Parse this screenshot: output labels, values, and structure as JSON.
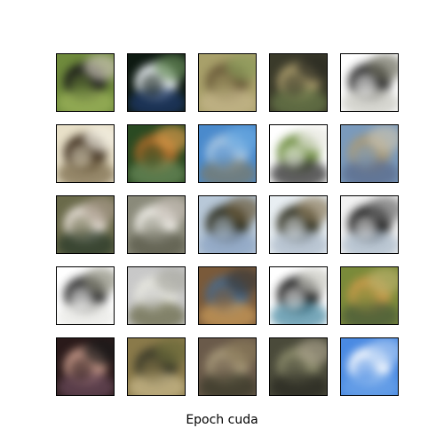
{
  "figure": {
    "caption": "Epoch cuda",
    "grid": {
      "rows": 5,
      "cols": 5
    },
    "samples": [
      {
        "name": "sample-1-1",
        "colors": [
          "#6f8a3c",
          "#1a1a1a",
          "#9bb25a",
          "#c9c2b5"
        ]
      },
      {
        "name": "sample-1-2",
        "colors": [
          "#0e1a12",
          "#e8eef2",
          "#1f3a6a",
          "#6a8f5a"
        ]
      },
      {
        "name": "sample-1-3",
        "colors": [
          "#a8a06a",
          "#6a5a3a",
          "#c4b58a",
          "#8a9a5a"
        ]
      },
      {
        "name": "sample-1-4",
        "colors": [
          "#3a3a2a",
          "#a89a6a",
          "#6a7a4a",
          "#2a2a22"
        ]
      },
      {
        "name": "sample-1-5",
        "colors": [
          "#ffffff",
          "#2a2a2a",
          "#c8c8c0",
          "#6a6a5a"
        ]
      },
      {
        "name": "sample-2-1",
        "colors": [
          "#e8e0c8",
          "#3a2a1a",
          "#7a6a4a",
          "#f2eee2"
        ]
      },
      {
        "name": "sample-2-2",
        "colors": [
          "#2a4a22",
          "#a86a2a",
          "#6a8a5a",
          "#d89a4a"
        ]
      },
      {
        "name": "sample-2-3",
        "colors": [
          "#4a8acc",
          "#a8c6e2",
          "#7a7a6a",
          "#6aaae2"
        ]
      },
      {
        "name": "sample-2-4",
        "colors": [
          "#ffffff",
          "#6a8a3a",
          "#2a2a2a",
          "#e8e8e0"
        ]
      },
      {
        "name": "sample-2-5",
        "colors": [
          "#7a9abc",
          "#a89a7a",
          "#5a6a8a",
          "#c8c2b0"
        ]
      },
      {
        "name": "sample-3-1",
        "colors": [
          "#6a6a4a",
          "#e8e0d8",
          "#2a3a2a",
          "#a89a8a"
        ]
      },
      {
        "name": "sample-3-2",
        "colors": [
          "#8a8a7a",
          "#f2f0ea",
          "#5a5a4a",
          "#c8c0b8"
        ]
      },
      {
        "name": "sample-3-3",
        "colors": [
          "#b8c8d8",
          "#2a2a1a",
          "#8aa2c2",
          "#6a5a3a"
        ]
      },
      {
        "name": "sample-3-4",
        "colors": [
          "#e8eef2",
          "#2a2a1a",
          "#aab8c8",
          "#8a7a5a"
        ]
      },
      {
        "name": "sample-3-5",
        "colors": [
          "#f2f2f2",
          "#1a1a1a",
          "#a8b8c8",
          "#6a6a6a"
        ]
      },
      {
        "name": "sample-4-1",
        "colors": [
          "#ffffff",
          "#2a2a2a",
          "#e8e8e4",
          "#8a8a7a"
        ]
      },
      {
        "name": "sample-4-2",
        "colors": [
          "#c8c8c8",
          "#e8e8e0",
          "#6a6a4a",
          "#aaaaa2"
        ]
      },
      {
        "name": "sample-4-3",
        "colors": [
          "#7a5a3a",
          "#4a6a8a",
          "#c89a5a",
          "#3a3a3a"
        ]
      },
      {
        "name": "sample-4-4",
        "colors": [
          "#ffffff",
          "#1a1a1a",
          "#4a8aa2",
          "#c8c8c0"
        ]
      },
      {
        "name": "sample-4-5",
        "colors": [
          "#7a8a3a",
          "#c89a4a",
          "#4a5a3a",
          "#b8b06a"
        ]
      },
      {
        "name": "sample-5-1",
        "colors": [
          "#2a1a1a",
          "#c89a8a",
          "#6a4a5a",
          "#1a1a1a"
        ]
      },
      {
        "name": "sample-5-2",
        "colors": [
          "#8a7a4a",
          "#3a3a2a",
          "#c8b88a",
          "#6a6a3a"
        ]
      },
      {
        "name": "sample-5-3",
        "colors": [
          "#6a5a4a",
          "#a89a7a",
          "#3a3a2a",
          "#8a7a5a"
        ]
      },
      {
        "name": "sample-5-4",
        "colors": [
          "#4a4a3a",
          "#8a8a6a",
          "#2a2a22",
          "#a8a08a"
        ]
      },
      {
        "name": "sample-5-5",
        "colors": [
          "#4a8ae2",
          "#ffffff",
          "#6aa2e8",
          "#a8c8f2"
        ]
      }
    ]
  }
}
